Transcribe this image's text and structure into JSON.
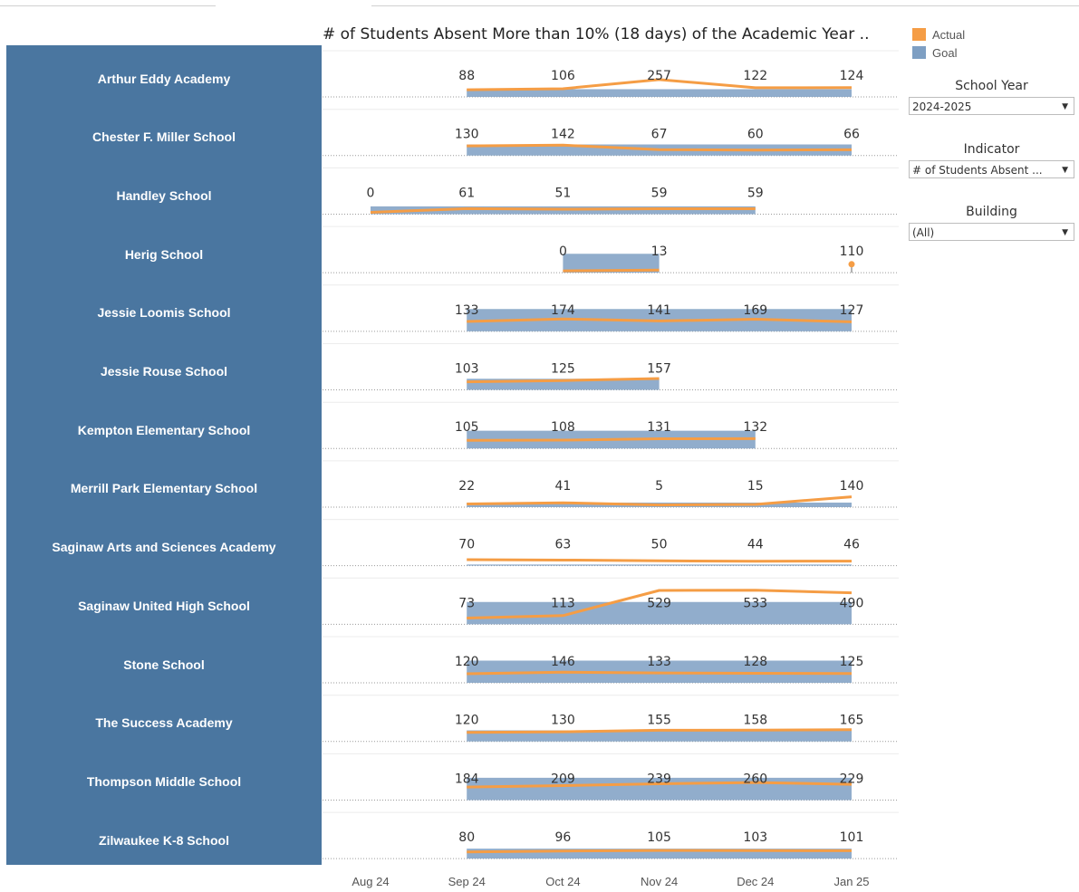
{
  "title": "# of Students Absent More than 10% (18 days) of the Academic Year ..",
  "legend": {
    "actual_label": "Actual",
    "goal_label": "Goal",
    "actual_color": "#f59d45",
    "goal_color": "#7e9fc3"
  },
  "filters": {
    "school_year": {
      "label": "School Year",
      "value": "2024-2025"
    },
    "indicator": {
      "label": "Indicator",
      "value": "# of Students Absent ..."
    },
    "building": {
      "label": "Building",
      "value": "(All)"
    }
  },
  "chart_data": {
    "type": "line",
    "months": [
      "Aug 24",
      "Sep 24",
      "Oct 24",
      "Nov 24",
      "Dec 24",
      "Jan 25"
    ],
    "schools": [
      {
        "name": "Arthur Eddy Academy",
        "actual": [
          null,
          88,
          106,
          257,
          122,
          124
        ],
        "goal": [
          null,
          0.35,
          0.35,
          0.35,
          0.35,
          0.35
        ]
      },
      {
        "name": "Chester F. Miller School",
        "actual": [
          null,
          130,
          142,
          67,
          60,
          66
        ],
        "goal": [
          null,
          0.5,
          0.5,
          0.5,
          0.5,
          0.5
        ]
      },
      {
        "name": "Handley School",
        "actual": [
          0,
          61,
          51,
          59,
          59,
          null
        ],
        "goal": [
          0.35,
          0.35,
          0.35,
          0.35,
          0.35,
          null
        ]
      },
      {
        "name": "Herig School",
        "actual": [
          null,
          null,
          0,
          13,
          null,
          110
        ],
        "goal": [
          null,
          null,
          0.85,
          0.85,
          null,
          null
        ]
      },
      {
        "name": "Jessie Loomis School",
        "actual": [
          null,
          133,
          174,
          141,
          169,
          127
        ],
        "goal": [
          null,
          1.0,
          1.0,
          1.0,
          1.0,
          1.0
        ]
      },
      {
        "name": "Jessie Rouse School",
        "actual": [
          null,
          103,
          125,
          157,
          null,
          null
        ],
        "goal": [
          null,
          0.5,
          0.5,
          0.5,
          null,
          null
        ]
      },
      {
        "name": "Kempton Elementary School",
        "actual": [
          null,
          105,
          108,
          131,
          132,
          null
        ],
        "goal": [
          null,
          0.8,
          0.8,
          0.8,
          0.8,
          null
        ]
      },
      {
        "name": "Merrill Park Elementary School",
        "actual": [
          null,
          22,
          41,
          5,
          15,
          140
        ],
        "goal": [
          null,
          0.2,
          0.2,
          0.2,
          0.2,
          0.2
        ]
      },
      {
        "name": "Saginaw Arts and Sciences Academy",
        "actual": [
          null,
          70,
          63,
          50,
          44,
          46
        ],
        "goal": [
          null,
          0.05,
          0.05,
          0.05,
          0.05,
          0.05
        ]
      },
      {
        "name": "Saginaw United High School",
        "actual": [
          null,
          73,
          113,
          529,
          533,
          490
        ],
        "goal": [
          null,
          1.0,
          1.0,
          1.0,
          1.0,
          1.0
        ]
      },
      {
        "name": "Stone School",
        "actual": [
          null,
          120,
          146,
          133,
          128,
          125
        ],
        "goal": [
          null,
          1.0,
          1.0,
          1.0,
          1.0,
          1.0
        ]
      },
      {
        "name": "The Success Academy",
        "actual": [
          null,
          120,
          130,
          155,
          158,
          165
        ],
        "goal": [
          null,
          0.5,
          0.5,
          0.5,
          0.5,
          0.5
        ]
      },
      {
        "name": "Thompson Middle School",
        "actual": [
          null,
          184,
          209,
          239,
          260,
          229
        ],
        "goal": [
          null,
          1.0,
          1.0,
          1.0,
          1.0,
          1.0
        ]
      },
      {
        "name": "Zilwaukee K-8 School",
        "actual": [
          null,
          80,
          96,
          105,
          103,
          101
        ],
        "goal": [
          null,
          0.45,
          0.45,
          0.45,
          0.45,
          0.45
        ]
      }
    ]
  }
}
